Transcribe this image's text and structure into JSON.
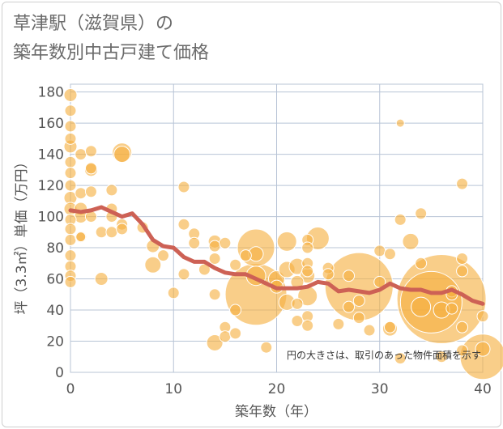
{
  "title_line1": "草津駅（滋賀県）の",
  "title_line2": "築年数別中古戸建て価格",
  "chart_data": {
    "type": "scatter",
    "title": "草津駅（滋賀県）の 築年数別中古戸建て価格",
    "xlabel": "築年数（年）",
    "ylabel": "坪（3.3㎡）単価（万円）",
    "note": "円の大きさは、取引のあった物件面積を示す",
    "xlim": [
      0,
      40
    ],
    "ylim": [
      0,
      185
    ],
    "xticks": [
      "0",
      "10",
      "20",
      "30",
      "40"
    ],
    "yticks": [
      "0",
      "20",
      "40",
      "60",
      "80",
      "100",
      "120",
      "140",
      "160",
      "180"
    ],
    "grid": true,
    "colors": {
      "bubble": "#f5b041",
      "line": "#cd6155",
      "grid": "#b8c4d6"
    },
    "series": [
      {
        "type": "bubble",
        "points": [
          {
            "x": 0,
            "y": 178,
            "s": 8
          },
          {
            "x": 0,
            "y": 168,
            "s": 7
          },
          {
            "x": 0,
            "y": 158,
            "s": 7
          },
          {
            "x": 0,
            "y": 150,
            "s": 7
          },
          {
            "x": 0,
            "y": 145,
            "s": 8
          },
          {
            "x": 0,
            "y": 135,
            "s": 7
          },
          {
            "x": 0,
            "y": 128,
            "s": 7
          },
          {
            "x": 0,
            "y": 120,
            "s": 7
          },
          {
            "x": 0,
            "y": 112,
            "s": 8
          },
          {
            "x": 0,
            "y": 105,
            "s": 8
          },
          {
            "x": 0,
            "y": 98,
            "s": 7
          },
          {
            "x": 0,
            "y": 92,
            "s": 7
          },
          {
            "x": 0,
            "y": 85,
            "s": 7
          },
          {
            "x": 0,
            "y": 75,
            "s": 7
          },
          {
            "x": 0,
            "y": 68,
            "s": 7
          },
          {
            "x": 0,
            "y": 62,
            "s": 7
          },
          {
            "x": 0,
            "y": 58,
            "s": 7
          },
          {
            "x": 1,
            "y": 140,
            "s": 7
          },
          {
            "x": 1,
            "y": 115,
            "s": 7
          },
          {
            "x": 1,
            "y": 105,
            "s": 8
          },
          {
            "x": 1,
            "y": 100,
            "s": 8
          },
          {
            "x": 1,
            "y": 87,
            "s": 7
          },
          {
            "x": 1,
            "y": 87,
            "s": 6
          },
          {
            "x": 2,
            "y": 142,
            "s": 7
          },
          {
            "x": 2,
            "y": 130,
            "s": 8
          },
          {
            "x": 2,
            "y": 131,
            "s": 7
          },
          {
            "x": 2,
            "y": 116,
            "s": 7
          },
          {
            "x": 2,
            "y": 100,
            "s": 7
          },
          {
            "x": 3,
            "y": 90,
            "s": 7
          },
          {
            "x": 3,
            "y": 60,
            "s": 8
          },
          {
            "x": 4,
            "y": 117,
            "s": 7
          },
          {
            "x": 4,
            "y": 105,
            "s": 7
          },
          {
            "x": 4,
            "y": 100,
            "s": 7
          },
          {
            "x": 4,
            "y": 90,
            "s": 7
          },
          {
            "x": 5,
            "y": 141,
            "s": 12
          },
          {
            "x": 5,
            "y": 140,
            "s": 10
          },
          {
            "x": 5,
            "y": 95,
            "s": 7
          },
          {
            "x": 5,
            "y": 92,
            "s": 7
          },
          {
            "x": 7,
            "y": 93,
            "s": 7
          },
          {
            "x": 8,
            "y": 81,
            "s": 8
          },
          {
            "x": 8,
            "y": 69,
            "s": 10
          },
          {
            "x": 9,
            "y": 75,
            "s": 7
          },
          {
            "x": 10,
            "y": 51,
            "s": 7
          },
          {
            "x": 11,
            "y": 119,
            "s": 7
          },
          {
            "x": 11,
            "y": 95,
            "s": 7
          },
          {
            "x": 11,
            "y": 63,
            "s": 7
          },
          {
            "x": 12,
            "y": 89,
            "s": 7
          },
          {
            "x": 12,
            "y": 83,
            "s": 7
          },
          {
            "x": 13,
            "y": 66,
            "s": 7
          },
          {
            "x": 14,
            "y": 84,
            "s": 8
          },
          {
            "x": 14,
            "y": 81,
            "s": 7
          },
          {
            "x": 14,
            "y": 73,
            "s": 7
          },
          {
            "x": 14,
            "y": 50,
            "s": 7
          },
          {
            "x": 14,
            "y": 19,
            "s": 10
          },
          {
            "x": 15,
            "y": 83,
            "s": 7
          },
          {
            "x": 15,
            "y": 29,
            "s": 7
          },
          {
            "x": 15,
            "y": 23,
            "s": 7
          },
          {
            "x": 16,
            "y": 69,
            "s": 7
          },
          {
            "x": 16,
            "y": 40,
            "s": 7
          },
          {
            "x": 16,
            "y": 25,
            "s": 7
          },
          {
            "x": 17,
            "y": 75,
            "s": 7
          },
          {
            "x": 18,
            "y": 80,
            "s": 23
          },
          {
            "x": 18,
            "y": 76,
            "s": 9
          },
          {
            "x": 18,
            "y": 62,
            "s": 12
          },
          {
            "x": 18,
            "y": 50,
            "s": 38
          },
          {
            "x": 19,
            "y": 16,
            "s": 7
          },
          {
            "x": 20,
            "y": 60,
            "s": 10
          },
          {
            "x": 20,
            "y": 55,
            "s": 8
          },
          {
            "x": 21,
            "y": 84,
            "s": 12
          },
          {
            "x": 21,
            "y": 66,
            "s": 10
          },
          {
            "x": 21,
            "y": 45,
            "s": 10
          },
          {
            "x": 22,
            "y": 68,
            "s": 10
          },
          {
            "x": 22,
            "y": 58,
            "s": 8
          },
          {
            "x": 22,
            "y": 44,
            "s": 7
          },
          {
            "x": 22,
            "y": 33,
            "s": 7
          },
          {
            "x": 23,
            "y": 85,
            "s": 7
          },
          {
            "x": 23,
            "y": 80,
            "s": 7
          },
          {
            "x": 23,
            "y": 70,
            "s": 7
          },
          {
            "x": 23,
            "y": 65,
            "s": 7
          },
          {
            "x": 23,
            "y": 62,
            "s": 9
          },
          {
            "x": 23,
            "y": 49,
            "s": 12
          },
          {
            "x": 23,
            "y": 36,
            "s": 7
          },
          {
            "x": 23,
            "y": 30,
            "s": 7
          },
          {
            "x": 24,
            "y": 86,
            "s": 14
          },
          {
            "x": 25,
            "y": 67,
            "s": 7
          },
          {
            "x": 25,
            "y": 63,
            "s": 7
          },
          {
            "x": 26,
            "y": 31,
            "s": 7
          },
          {
            "x": 27,
            "y": 62,
            "s": 7
          },
          {
            "x": 27,
            "y": 42,
            "s": 7
          },
          {
            "x": 28,
            "y": 55,
            "s": 42
          },
          {
            "x": 28,
            "y": 46,
            "s": 7
          },
          {
            "x": 28,
            "y": 35,
            "s": 7
          },
          {
            "x": 29,
            "y": 27,
            "s": 7
          },
          {
            "x": 30,
            "y": 78,
            "s": 7
          },
          {
            "x": 30,
            "y": 58,
            "s": 7
          },
          {
            "x": 31,
            "y": 76,
            "s": 7
          },
          {
            "x": 31,
            "y": 29,
            "s": 7
          },
          {
            "x": 31,
            "y": 28,
            "s": 9
          },
          {
            "x": 32,
            "y": 160,
            "s": 5
          },
          {
            "x": 32,
            "y": 98,
            "s": 7
          },
          {
            "x": 32,
            "y": 9,
            "s": 7
          },
          {
            "x": 33,
            "y": 84,
            "s": 10
          },
          {
            "x": 34,
            "y": 102,
            "s": 7
          },
          {
            "x": 34,
            "y": 70,
            "s": 7
          },
          {
            "x": 34,
            "y": 42,
            "s": 12
          },
          {
            "x": 35,
            "y": 45,
            "s": 38
          },
          {
            "x": 36,
            "y": 47,
            "s": 55
          },
          {
            "x": 36,
            "y": 40,
            "s": 10
          },
          {
            "x": 36,
            "y": 10,
            "s": 7
          },
          {
            "x": 37,
            "y": 52,
            "s": 7
          },
          {
            "x": 37,
            "y": 50,
            "s": 7
          },
          {
            "x": 37,
            "y": 41,
            "s": 7
          },
          {
            "x": 38,
            "y": 121,
            "s": 7
          },
          {
            "x": 38,
            "y": 73,
            "s": 7
          },
          {
            "x": 38,
            "y": 65,
            "s": 7
          },
          {
            "x": 38,
            "y": 29,
            "s": 7
          },
          {
            "x": 38,
            "y": 14,
            "s": 7
          },
          {
            "x": 40,
            "y": 36,
            "s": 7
          },
          {
            "x": 40,
            "y": 15,
            "s": 9
          },
          {
            "x": 40,
            "y": 10,
            "s": 28
          }
        ]
      },
      {
        "type": "line",
        "points": [
          {
            "x": 0,
            "y": 104
          },
          {
            "x": 1,
            "y": 103
          },
          {
            "x": 2,
            "y": 104
          },
          {
            "x": 3,
            "y": 106
          },
          {
            "x": 4,
            "y": 103
          },
          {
            "x": 5,
            "y": 100
          },
          {
            "x": 6,
            "y": 102
          },
          {
            "x": 7,
            "y": 95
          },
          {
            "x": 8,
            "y": 85
          },
          {
            "x": 9,
            "y": 81
          },
          {
            "x": 10,
            "y": 80
          },
          {
            "x": 11,
            "y": 74
          },
          {
            "x": 12,
            "y": 71
          },
          {
            "x": 13,
            "y": 71
          },
          {
            "x": 14,
            "y": 67
          },
          {
            "x": 15,
            "y": 64
          },
          {
            "x": 16,
            "y": 63
          },
          {
            "x": 17,
            "y": 63
          },
          {
            "x": 18,
            "y": 60
          },
          {
            "x": 19,
            "y": 57
          },
          {
            "x": 20,
            "y": 54
          },
          {
            "x": 21,
            "y": 54
          },
          {
            "x": 22,
            "y": 54
          },
          {
            "x": 23,
            "y": 55
          },
          {
            "x": 24,
            "y": 58
          },
          {
            "x": 25,
            "y": 57
          },
          {
            "x": 26,
            "y": 52
          },
          {
            "x": 27,
            "y": 53
          },
          {
            "x": 28,
            "y": 52
          },
          {
            "x": 29,
            "y": 51
          },
          {
            "x": 30,
            "y": 53
          },
          {
            "x": 31,
            "y": 57
          },
          {
            "x": 32,
            "y": 54
          },
          {
            "x": 33,
            "y": 53
          },
          {
            "x": 34,
            "y": 53
          },
          {
            "x": 35,
            "y": 51
          },
          {
            "x": 36,
            "y": 51
          },
          {
            "x": 37,
            "y": 53
          },
          {
            "x": 38,
            "y": 50
          },
          {
            "x": 39,
            "y": 46
          },
          {
            "x": 40,
            "y": 44
          }
        ]
      }
    ]
  }
}
